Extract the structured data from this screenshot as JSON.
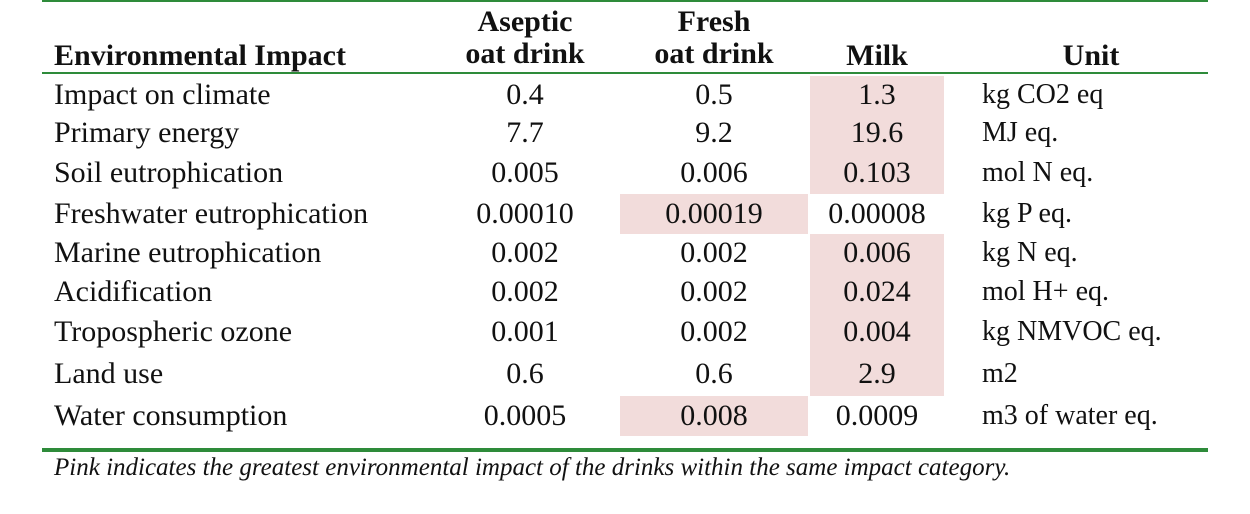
{
  "table": {
    "headers": {
      "impact": "Environmental Impact",
      "aseptic_line1": "Aseptic",
      "aseptic_line2": "oat drink",
      "fresh_line1": "Fresh",
      "fresh_line2": "oat drink",
      "milk": "Milk",
      "unit": "Unit"
    },
    "highlight_color": "#f2dcdb",
    "rule_color": "#2e8b3a",
    "rows": [
      {
        "label": "Impact on climate",
        "aseptic": "0.4",
        "fresh": "0.5",
        "milk": "1.3",
        "unit": "kg CO2 eq",
        "highlight": "milk"
      },
      {
        "label": "Primary energy",
        "aseptic": "7.7",
        "fresh": "9.2",
        "milk": "19.6",
        "unit": "MJ eq.",
        "highlight": "milk"
      },
      {
        "label": "Soil eutrophication",
        "aseptic": "0.005",
        "fresh": "0.006",
        "milk": "0.103",
        "unit": "mol N eq.",
        "highlight": "milk"
      },
      {
        "label": "Freshwater eutrophication",
        "aseptic": "0.00010",
        "fresh": "0.00019",
        "milk": "0.00008",
        "unit": "kg P eq.",
        "highlight": "fresh"
      },
      {
        "label": "Marine eutrophication",
        "aseptic": "0.002",
        "fresh": "0.002",
        "milk": "0.006",
        "unit": "kg N eq.",
        "highlight": "milk"
      },
      {
        "label": "Acidification",
        "aseptic": "0.002",
        "fresh": "0.002",
        "milk": "0.024",
        "unit": "mol H+ eq.",
        "highlight": "milk"
      },
      {
        "label": "Tropospheric ozone",
        "aseptic": "0.001",
        "fresh": "0.002",
        "milk": "0.004",
        "unit": "kg NMVOC eq.",
        "highlight": "milk"
      },
      {
        "label": "Land use",
        "aseptic": "0.6",
        "fresh": "0.6",
        "milk": "2.9",
        "unit": "m2",
        "highlight": "milk"
      },
      {
        "label": "Water consumption",
        "aseptic": "0.0005",
        "fresh": "0.008",
        "milk": "0.0009",
        "unit": "m3 of water eq.",
        "highlight": "fresh"
      }
    ]
  },
  "footnote": "Pink indicates the greatest environmental impact of the drinks within the same impact category."
}
